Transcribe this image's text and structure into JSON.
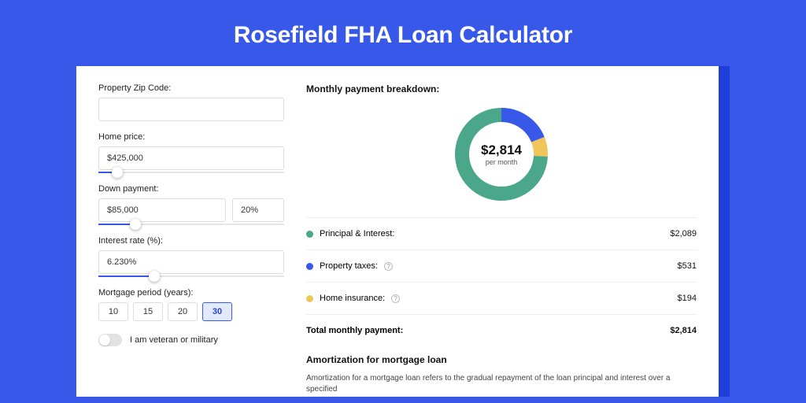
{
  "title": "Rosefield FHA Loan Calculator",
  "colors": {
    "page_bg": "#3858e9",
    "shadow_card": "#1e3fd8",
    "accent": "#3858e9",
    "pi": "#4aa789",
    "tax": "#3858e9",
    "ins": "#f0c65a"
  },
  "form": {
    "zip": {
      "label": "Property Zip Code:",
      "value": ""
    },
    "home_price": {
      "label": "Home price:",
      "value": "$425,000",
      "slider_pct": 10
    },
    "down_payment": {
      "label": "Down payment:",
      "value": "$85,000",
      "pct_value": "20%",
      "slider_pct": 20
    },
    "interest": {
      "label": "Interest rate (%):",
      "value": "6.230%",
      "slider_pct": 30
    },
    "period": {
      "label": "Mortgage period (years):",
      "options": [
        "10",
        "15",
        "20",
        "30"
      ],
      "selected": "30"
    },
    "veteran": {
      "label": "I am veteran or military",
      "on": false
    }
  },
  "breakdown": {
    "title": "Monthly payment breakdown:",
    "center_amount": "$2,814",
    "center_sub": "per month",
    "donut": {
      "slices": [
        {
          "key": "tax",
          "value": 531,
          "color": "#3858e9"
        },
        {
          "key": "ins",
          "value": 194,
          "color": "#f0c65a"
        },
        {
          "key": "pi",
          "value": 2089,
          "color": "#4aa789"
        }
      ],
      "stroke_width": 18,
      "radius": 50
    },
    "rows": [
      {
        "dot": "#4aa789",
        "label": "Principal & Interest:",
        "info": false,
        "value": "$2,089"
      },
      {
        "dot": "#3858e9",
        "label": "Property taxes:",
        "info": true,
        "value": "$531"
      },
      {
        "dot": "#f0c65a",
        "label": "Home insurance:",
        "info": true,
        "value": "$194"
      }
    ],
    "total": {
      "label": "Total monthly payment:",
      "value": "$2,814"
    }
  },
  "amort": {
    "title": "Amortization for mortgage loan",
    "text": "Amortization for a mortgage loan refers to the gradual repayment of the loan principal and interest over a specified"
  }
}
